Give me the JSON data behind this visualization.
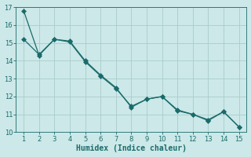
{
  "xlabel": "Humidex (Indice chaleur)",
  "bg_color": "#cce8e8",
  "grid_color": "#aacccc",
  "line_color": "#1a6b6b",
  "line1_x": [
    1,
    2,
    3,
    4,
    5,
    6,
    7,
    8,
    9,
    10,
    11,
    12,
    13,
    14,
    15
  ],
  "line1_y": [
    16.8,
    14.3,
    15.2,
    15.1,
    14.0,
    13.2,
    12.5,
    11.4,
    11.85,
    12.0,
    11.25,
    11.0,
    10.7,
    11.15,
    10.3
  ],
  "line2_x": [
    1,
    2,
    3,
    4,
    5,
    6,
    7,
    8,
    9,
    10,
    11,
    12,
    13,
    14,
    15
  ],
  "line2_y": [
    15.2,
    14.35,
    15.2,
    15.05,
    13.95,
    13.15,
    12.45,
    11.45,
    11.85,
    12.0,
    11.2,
    11.0,
    10.65,
    11.15,
    10.3
  ],
  "xlim": [
    0.5,
    15.5
  ],
  "ylim": [
    10,
    17
  ],
  "xticks": [
    1,
    2,
    3,
    4,
    5,
    6,
    7,
    8,
    9,
    10,
    11,
    12,
    13,
    14,
    15
  ],
  "yticks": [
    10,
    11,
    12,
    13,
    14,
    15,
    16,
    17
  ],
  "marker_size": 3.0,
  "line_width": 0.9,
  "xlabel_fontsize": 7,
  "tick_fontsize": 6
}
